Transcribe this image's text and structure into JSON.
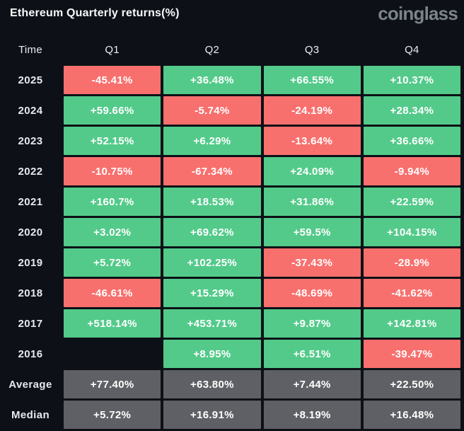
{
  "header": {
    "title": "Ethereum Quarterly returns(%)",
    "logo": "coinglass"
  },
  "colors": {
    "positive": "#53ca8a",
    "negative": "#f8706e",
    "aggregate": "#5e6065",
    "background": "#0d1117",
    "cell_text": "#ffffff",
    "label_text": "#e6e9f0",
    "logo_text": "#7b828a"
  },
  "table": {
    "columns": [
      "Time",
      "Q1",
      "Q2",
      "Q3",
      "Q4"
    ],
    "rows": [
      {
        "label": "2025",
        "cells": [
          {
            "text": "-45.41%",
            "kind": "neg"
          },
          {
            "text": "+36.48%",
            "kind": "pos"
          },
          {
            "text": "+66.55%",
            "kind": "pos"
          },
          {
            "text": "+10.37%",
            "kind": "pos"
          }
        ]
      },
      {
        "label": "2024",
        "cells": [
          {
            "text": "+59.66%",
            "kind": "pos"
          },
          {
            "text": "-5.74%",
            "kind": "neg"
          },
          {
            "text": "-24.19%",
            "kind": "neg"
          },
          {
            "text": "+28.34%",
            "kind": "pos"
          }
        ]
      },
      {
        "label": "2023",
        "cells": [
          {
            "text": "+52.15%",
            "kind": "pos"
          },
          {
            "text": "+6.29%",
            "kind": "pos"
          },
          {
            "text": "-13.64%",
            "kind": "neg"
          },
          {
            "text": "+36.66%",
            "kind": "pos"
          }
        ]
      },
      {
        "label": "2022",
        "cells": [
          {
            "text": "-10.75%",
            "kind": "neg"
          },
          {
            "text": "-67.34%",
            "kind": "neg"
          },
          {
            "text": "+24.09%",
            "kind": "pos"
          },
          {
            "text": "-9.94%",
            "kind": "neg"
          }
        ]
      },
      {
        "label": "2021",
        "cells": [
          {
            "text": "+160.7%",
            "kind": "pos"
          },
          {
            "text": "+18.53%",
            "kind": "pos"
          },
          {
            "text": "+31.86%",
            "kind": "pos"
          },
          {
            "text": "+22.59%",
            "kind": "pos"
          }
        ]
      },
      {
        "label": "2020",
        "cells": [
          {
            "text": "+3.02%",
            "kind": "pos"
          },
          {
            "text": "+69.62%",
            "kind": "pos"
          },
          {
            "text": "+59.5%",
            "kind": "pos"
          },
          {
            "text": "+104.15%",
            "kind": "pos"
          }
        ]
      },
      {
        "label": "2019",
        "cells": [
          {
            "text": "+5.72%",
            "kind": "pos"
          },
          {
            "text": "+102.25%",
            "kind": "pos"
          },
          {
            "text": "-37.43%",
            "kind": "neg"
          },
          {
            "text": "-28.9%",
            "kind": "neg"
          }
        ]
      },
      {
        "label": "2018",
        "cells": [
          {
            "text": "-46.61%",
            "kind": "neg"
          },
          {
            "text": "+15.29%",
            "kind": "pos"
          },
          {
            "text": "-48.69%",
            "kind": "neg"
          },
          {
            "text": "-41.62%",
            "kind": "neg"
          }
        ]
      },
      {
        "label": "2017",
        "cells": [
          {
            "text": "+518.14%",
            "kind": "pos"
          },
          {
            "text": "+453.71%",
            "kind": "pos"
          },
          {
            "text": "+9.87%",
            "kind": "pos"
          },
          {
            "text": "+142.81%",
            "kind": "pos"
          }
        ]
      },
      {
        "label": "2016",
        "cells": [
          {
            "text": "",
            "kind": "empty"
          },
          {
            "text": "+8.95%",
            "kind": "pos"
          },
          {
            "text": "+6.51%",
            "kind": "pos"
          },
          {
            "text": "-39.47%",
            "kind": "neg"
          }
        ]
      },
      {
        "label": "Average",
        "cells": [
          {
            "text": "+77.40%",
            "kind": "stat"
          },
          {
            "text": "+63.80%",
            "kind": "stat"
          },
          {
            "text": "+7.44%",
            "kind": "stat"
          },
          {
            "text": "+22.50%",
            "kind": "stat"
          }
        ]
      },
      {
        "label": "Median",
        "cells": [
          {
            "text": "+5.72%",
            "kind": "stat"
          },
          {
            "text": "+16.91%",
            "kind": "stat"
          },
          {
            "text": "+8.19%",
            "kind": "stat"
          },
          {
            "text": "+16.48%",
            "kind": "stat"
          }
        ]
      }
    ]
  },
  "chart_data": {
    "type": "heatmap",
    "title": "Ethereum Quarterly returns(%)",
    "columns": [
      "Q1",
      "Q2",
      "Q3",
      "Q4"
    ],
    "rows": [
      "2025",
      "2024",
      "2023",
      "2022",
      "2021",
      "2020",
      "2019",
      "2018",
      "2017",
      "2016",
      "Average",
      "Median"
    ],
    "values": [
      [
        -45.41,
        36.48,
        66.55,
        10.37
      ],
      [
        59.66,
        -5.74,
        -24.19,
        28.34
      ],
      [
        52.15,
        6.29,
        -13.64,
        36.66
      ],
      [
        -10.75,
        -67.34,
        24.09,
        -9.94
      ],
      [
        160.7,
        18.53,
        31.86,
        22.59
      ],
      [
        3.02,
        69.62,
        59.5,
        104.15
      ],
      [
        5.72,
        102.25,
        -37.43,
        -28.9
      ],
      [
        -46.61,
        15.29,
        -48.69,
        -41.62
      ],
      [
        518.14,
        453.71,
        9.87,
        142.81
      ],
      [
        null,
        8.95,
        6.51,
        -39.47
      ],
      [
        77.4,
        63.8,
        7.44,
        22.5
      ],
      [
        5.72,
        16.91,
        8.19,
        16.48
      ]
    ],
    "unit": "%",
    "legend_position": "none",
    "color_coding": {
      "positive": "#53ca8a",
      "negative": "#f8706e",
      "aggregate_rows": "#5e6065"
    }
  }
}
